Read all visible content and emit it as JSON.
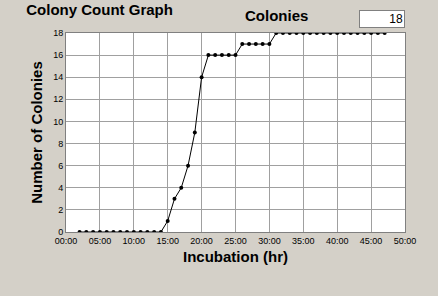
{
  "chart_data": {
    "type": "line",
    "title": "Colony Count Graph",
    "annotations": [
      "Colonies",
      "18"
    ],
    "x_label": "Incubation (hr)",
    "y_label": "Number of Colonies",
    "x": [
      2,
      3,
      4,
      5,
      6,
      7,
      8,
      9,
      10,
      11,
      12,
      13,
      14,
      15,
      16,
      17,
      18,
      19,
      20,
      21,
      22,
      23,
      24,
      25,
      26,
      27,
      28,
      29,
      30,
      31,
      32,
      33,
      34,
      35,
      36,
      37,
      38,
      39,
      40,
      41,
      42,
      43,
      44,
      45,
      46,
      47
    ],
    "values": [
      0,
      0,
      0,
      0,
      0,
      0,
      0,
      0,
      0,
      0,
      0,
      0,
      0,
      1,
      3,
      4,
      6,
      9,
      14,
      16,
      16,
      16,
      16,
      16,
      17,
      17,
      17,
      17,
      17,
      18,
      18,
      18,
      18,
      18,
      18,
      18,
      18,
      18,
      18,
      18,
      18,
      18,
      18,
      18,
      18,
      18
    ],
    "color": "#000000",
    "marker": "circle",
    "xlim": [
      0,
      50
    ],
    "xticks": [
      {
        "value": 0,
        "label": "00:00"
      },
      {
        "value": 5,
        "label": "05:00"
      },
      {
        "value": 10,
        "label": "10:00"
      },
      {
        "value": 15,
        "label": "15:00"
      },
      {
        "value": 20,
        "label": "20:00"
      },
      {
        "value": 25,
        "label": "25:00"
      },
      {
        "value": 30,
        "label": "30:00"
      },
      {
        "value": 35,
        "label": "35:00"
      },
      {
        "value": 40,
        "label": "40:00"
      },
      {
        "value": 45,
        "label": "45:00"
      },
      {
        "value": 50,
        "label": "50:00"
      }
    ],
    "ylim": [
      0,
      18
    ],
    "yticks": [
      0,
      2,
      4,
      6,
      8,
      10,
      12,
      14,
      16,
      18
    ],
    "grid": true
  }
}
